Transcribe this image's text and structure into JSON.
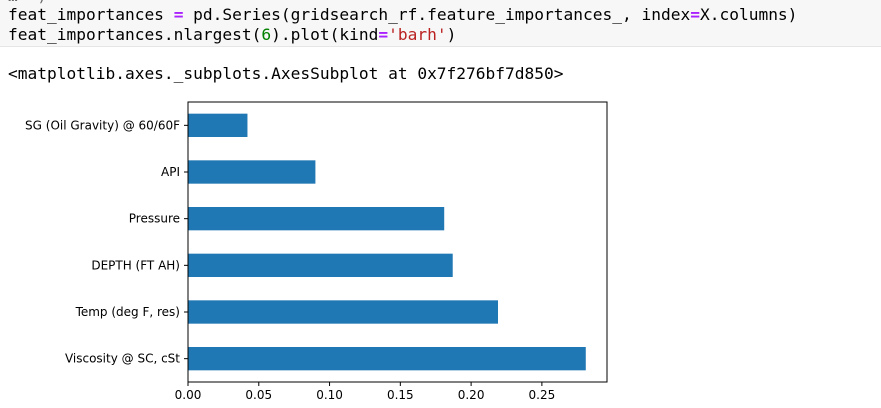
{
  "code_cell": {
    "line0_fragment": "…  )",
    "line1": {
      "a": "feat_importances ",
      "op": "=",
      "b": " pd.Series(gridsearch_rf.feature_importances_, index",
      "op2": "=",
      "c": "X.columns)"
    },
    "line2": {
      "a": "feat_importances.nlargest(",
      "num": "6",
      "b": ").plot(kind",
      "op": "=",
      "str": "'barh'",
      "c": ")"
    }
  },
  "output_text": "<matplotlib.axes._subplots.AxesSubplot at 0x7f276bf7d850>",
  "chart_data": {
    "type": "bar",
    "orientation": "horizontal",
    "categories": [
      "SG (Oil Gravity) @ 60/60F",
      "API",
      "Pressure",
      "DEPTH (FT AH)",
      "Temp (deg F, res)",
      "Viscosity @ SC, cSt"
    ],
    "values": [
      0.042,
      0.09,
      0.181,
      0.187,
      0.219,
      0.281
    ],
    "xlim": [
      0.0,
      0.296
    ],
    "xticks": [
      "0.00",
      "0.05",
      "0.10",
      "0.15",
      "0.20",
      "0.25"
    ],
    "bar_color": "#1f77b4",
    "title": "",
    "xlabel": "",
    "ylabel": "",
    "grid": false,
    "legend": "none"
  }
}
